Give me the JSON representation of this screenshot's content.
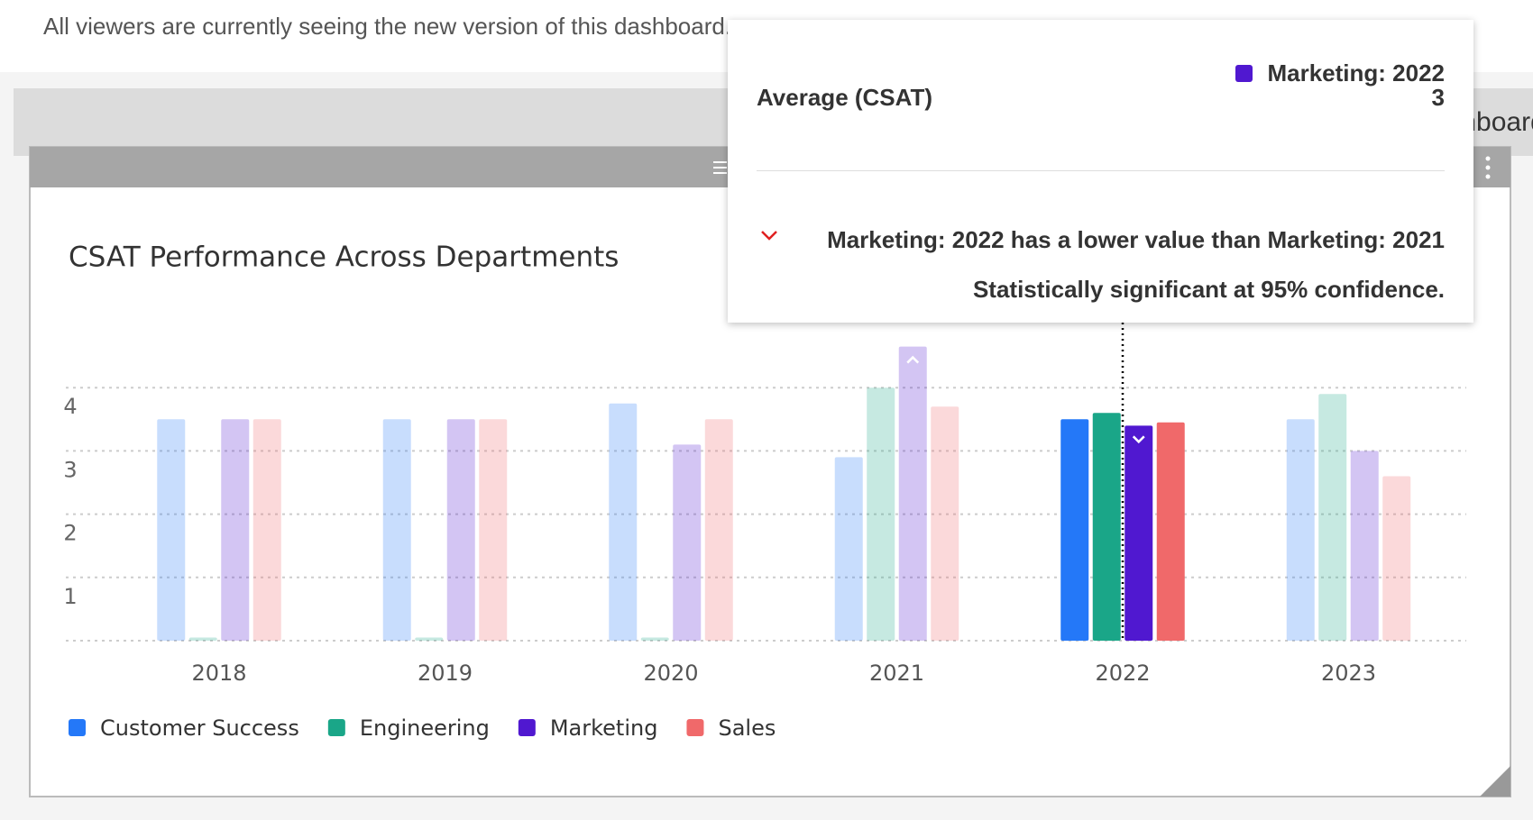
{
  "banner": {
    "text": "All viewers are currently seeing the new version of this dashboard."
  },
  "toolbar": {
    "text": "Dashboard"
  },
  "chart_data": {
    "type": "bar",
    "title": "CSAT Performance Across Departments",
    "categories": [
      "2018",
      "2019",
      "2020",
      "2021",
      "2022",
      "2023"
    ],
    "series": [
      {
        "name": "Customer Success",
        "color": "#2478f8",
        "values": [
          3.5,
          3.5,
          3.75,
          2.9,
          3.5,
          3.5
        ]
      },
      {
        "name": "Engineering",
        "color": "#1aa688",
        "values": [
          0.05,
          0.05,
          0.05,
          4.0,
          3.6,
          3.9
        ]
      },
      {
        "name": "Marketing",
        "color": "#5018d0",
        "values": [
          3.5,
          3.5,
          3.1,
          4.65,
          3.4,
          3.0
        ],
        "indicators": [
          null,
          null,
          null,
          "up",
          "down",
          null
        ]
      },
      {
        "name": "Sales",
        "color": "#f0696a",
        "values": [
          3.5,
          3.5,
          3.5,
          3.7,
          3.45,
          2.6
        ]
      }
    ],
    "ylim": [
      0,
      5
    ],
    "yticks": [
      1,
      2,
      3,
      4
    ],
    "grid": true,
    "highlight_index": 4,
    "legend": "bottom-left"
  },
  "tooltip": {
    "series": "Marketing: 2022",
    "metric": "Average (CSAT)",
    "value": 3,
    "note": "Marketing: 2022 has a lower value than Marketing: 2021",
    "significance": "Statistically significant at 95% confidence."
  }
}
